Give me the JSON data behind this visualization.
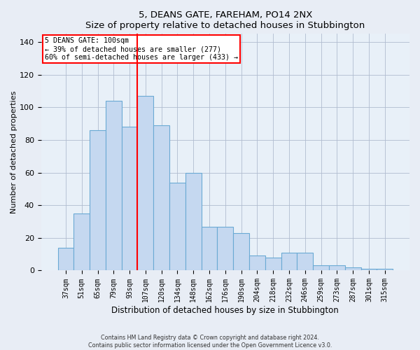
{
  "title": "5, DEANS GATE, FAREHAM, PO14 2NX",
  "subtitle": "Size of property relative to detached houses in Stubbington",
  "xlabel": "Distribution of detached houses by size in Stubbington",
  "ylabel": "Number of detached properties",
  "footer_line1": "Contains HM Land Registry data © Crown copyright and database right 2024.",
  "footer_line2": "Contains public sector information licensed under the Open Government Licence v3.0.",
  "categories": [
    "37sqm",
    "51sqm",
    "65sqm",
    "79sqm",
    "93sqm",
    "107sqm",
    "120sqm",
    "134sqm",
    "148sqm",
    "162sqm",
    "176sqm",
    "190sqm",
    "204sqm",
    "218sqm",
    "232sqm",
    "246sqm",
    "259sqm",
    "273sqm",
    "287sqm",
    "301sqm",
    "315sqm"
  ],
  "values": [
    14,
    35,
    86,
    104,
    88,
    107,
    89,
    54,
    60,
    27,
    27,
    23,
    9,
    8,
    11,
    11,
    3,
    3,
    2,
    1,
    1
  ],
  "bar_color": "#c5d8f0",
  "bar_edge_color": "#6aaad4",
  "vline_x": 4.5,
  "vline_color": "red",
  "annotation_title": "5 DEANS GATE: 100sqm",
  "annotation_line2": "← 39% of detached houses are smaller (277)",
  "annotation_line3": "60% of semi-detached houses are larger (433) →",
  "ylim": [
    0,
    145
  ],
  "yticks": [
    0,
    20,
    40,
    60,
    80,
    100,
    120,
    140
  ],
  "fig_background": "#e8edf5",
  "plot_background": "#e8f0f8"
}
